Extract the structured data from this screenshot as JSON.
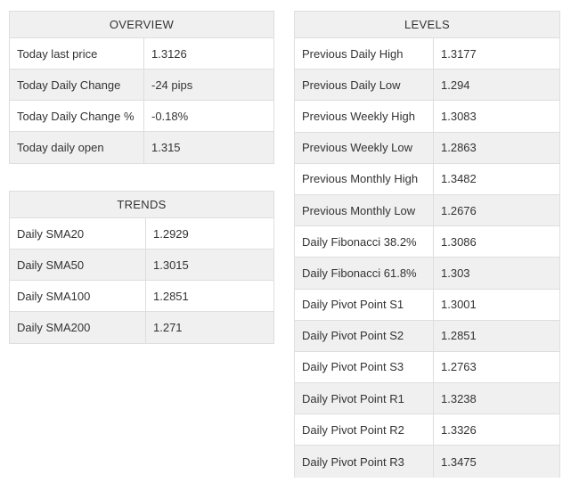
{
  "overview": {
    "title": "OVERVIEW",
    "rows": [
      {
        "label": "Today last price",
        "value": "1.3126"
      },
      {
        "label": "Today Daily Change",
        "value": "-24 pips"
      },
      {
        "label": "Today Daily Change %",
        "value": "-0.18%"
      },
      {
        "label": "Today daily open",
        "value": "1.315"
      }
    ]
  },
  "trends": {
    "title": "TRENDS",
    "rows": [
      {
        "label": "Daily SMA20",
        "value": "1.2929"
      },
      {
        "label": "Daily SMA50",
        "value": "1.3015"
      },
      {
        "label": "Daily SMA100",
        "value": "1.2851"
      },
      {
        "label": "Daily SMA200",
        "value": "1.271"
      }
    ]
  },
  "levels": {
    "title": "LEVELS",
    "rows": [
      {
        "label": "Previous Daily High",
        "value": "1.3177"
      },
      {
        "label": "Previous Daily Low",
        "value": "1.294"
      },
      {
        "label": "Previous Weekly High",
        "value": "1.3083"
      },
      {
        "label": "Previous Weekly Low",
        "value": "1.2863"
      },
      {
        "label": "Previous Monthly High",
        "value": "1.3482"
      },
      {
        "label": "Previous Monthly Low",
        "value": "1.2676"
      },
      {
        "label": "Daily Fibonacci 38.2%",
        "value": "1.3086"
      },
      {
        "label": "Daily Fibonacci 61.8%",
        "value": "1.303"
      },
      {
        "label": "Daily Pivot Point S1",
        "value": "1.3001"
      },
      {
        "label": "Daily Pivot Point S2",
        "value": "1.2851"
      },
      {
        "label": "Daily Pivot Point S3",
        "value": "1.2763"
      },
      {
        "label": "Daily Pivot Point R1",
        "value": "1.3238"
      },
      {
        "label": "Daily Pivot Point R2",
        "value": "1.3326"
      },
      {
        "label": "Daily Pivot Point R3",
        "value": "1.3475"
      }
    ]
  },
  "colors": {
    "header_bg": "#f0f0f0",
    "border": "#dedede",
    "text": "#333333"
  }
}
